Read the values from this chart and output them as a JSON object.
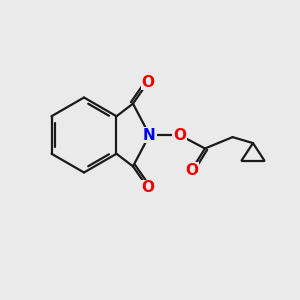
{
  "bg_color": "#eaeaea",
  "line_color": "#1a1a1a",
  "N_color": "#0000ee",
  "O_color": "#ee0000",
  "line_width": 1.6,
  "font_size_atom": 11,
  "fig_size": [
    3.0,
    3.0
  ],
  "dpi": 100,
  "xlim": [
    0,
    10
  ],
  "ylim": [
    0,
    10
  ]
}
